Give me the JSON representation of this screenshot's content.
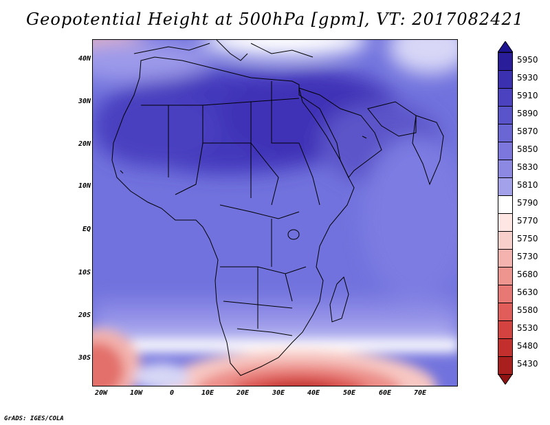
{
  "title": "Geopotential Height at 500hPa [gpm], VT: 2017082421",
  "credit": "GrADS: IGES/COLA",
  "map": {
    "region": "Africa and surroundings",
    "lat_ticks": [
      "40N",
      "30N",
      "20N",
      "10N",
      "EQ",
      "10S",
      "20S",
      "30S"
    ],
    "lon_ticks": [
      "20W",
      "10W",
      "0",
      "10E",
      "20E",
      "30E",
      "40E",
      "50E",
      "60E",
      "70E"
    ]
  },
  "colorbar": {
    "levels": [
      "5950",
      "5930",
      "5910",
      "5890",
      "5870",
      "5850",
      "5830",
      "5810",
      "5790",
      "5770",
      "5750",
      "5730",
      "5680",
      "5630",
      "5580",
      "5530",
      "5480",
      "5430"
    ],
    "colors": [
      "#2a1d9a",
      "#3a30b0",
      "#4a42bf",
      "#5a54ca",
      "#6a66d4",
      "#7b77dc",
      "#8c89e3",
      "#a2a1ea",
      "#ffffff",
      "#fde6e4",
      "#f9cfcb",
      "#f4b3ae",
      "#ef9590",
      "#e87873",
      "#e05d59",
      "#d44340",
      "#c22f2c",
      "#a81f1d"
    ],
    "top_arrow_color": "#1f1490",
    "bottom_arrow_color": "#8f1312"
  },
  "colors": {
    "land_line": "#000000",
    "high_core": "#3d31b5",
    "background_field": "#7070dc",
    "low_field": "#d94a47"
  }
}
